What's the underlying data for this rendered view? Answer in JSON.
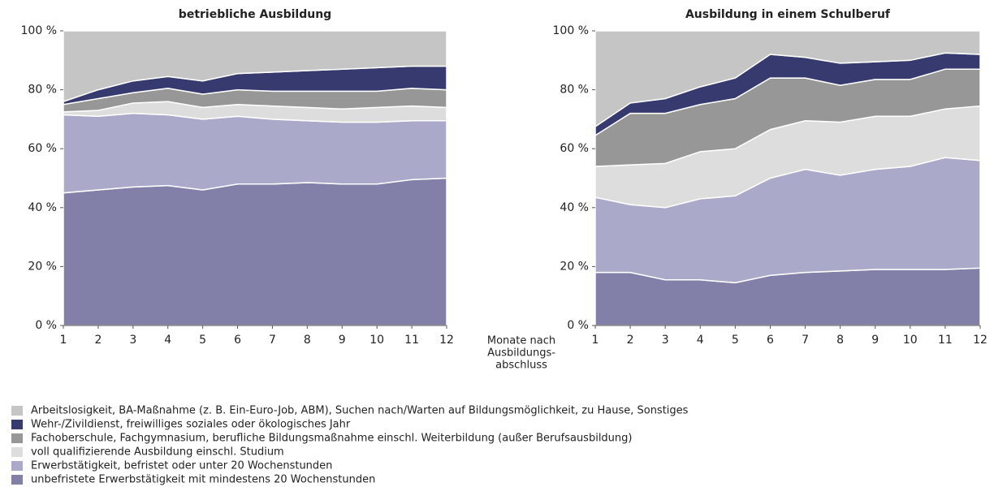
{
  "chart_data": [
    {
      "type": "area",
      "stacked": true,
      "title": "betriebliche Ausbildung",
      "x": [
        1,
        2,
        3,
        4,
        5,
        6,
        7,
        8,
        9,
        10,
        11,
        12
      ],
      "xlim": [
        1,
        12
      ],
      "xticks": [
        1,
        2,
        3,
        4,
        5,
        6,
        7,
        8,
        9,
        10,
        11,
        12
      ],
      "ylim": [
        0,
        100
      ],
      "yticks": [
        {
          "value": 0,
          "label": "0 %"
        },
        {
          "value": 20,
          "label": "20 %"
        },
        {
          "value": 40,
          "label": "40 %"
        },
        {
          "value": 60,
          "label": "60 %"
        },
        {
          "value": 80,
          "label": "80 %"
        },
        {
          "value": 100,
          "label": "100 %"
        }
      ],
      "series": [
        {
          "name": "unbefristete Erwerbstätigkeit mit mindestens 20 Wochenstunden",
          "color": "#8280a8",
          "values": [
            45,
            46,
            47,
            47.5,
            46,
            48,
            48,
            48.5,
            48,
            48,
            49.5,
            50
          ]
        },
        {
          "name": "Erwerbstätigkeit, befristet oder unter 20 Wochenstunden",
          "color": "#aba9c9",
          "values": [
            26.5,
            25,
            25,
            24,
            24,
            23,
            22,
            21,
            21,
            21,
            20,
            19.5
          ]
        },
        {
          "name": "voll qualifizierende Ausbildung einschl. Studium",
          "color": "#dddddd",
          "values": [
            1,
            2,
            3.5,
            4.5,
            4,
            4,
            4.5,
            4.5,
            4.5,
            5,
            5,
            4.5
          ]
        },
        {
          "name": "Fachoberschule, Fachgymnasium, berufliche Bildungsmaßnahme einschl. Weiterbildung (außer Berufsausbildung)",
          "color": "#979797",
          "values": [
            2.5,
            4,
            3.5,
            4.5,
            4.5,
            5,
            5,
            5.5,
            6,
            5.5,
            6,
            6
          ]
        },
        {
          "name": "Wehr-/Zivildienst, freiwilliges soziales oder ökologisches Jahr",
          "color": "#373a6e",
          "values": [
            1,
            3,
            4,
            4,
            4.5,
            5.5,
            6.5,
            7,
            7.5,
            8,
            7.5,
            8
          ]
        },
        {
          "name": "Arbeitslosigkeit, BA-Maßnahme (z. B. Ein-Euro-Job, ABM), Suchen nach/Warten auf Bildungsmöglichkeit, zu Hause, Sonstiges",
          "color": "#c5c5c5",
          "values": [
            24,
            20,
            17,
            15.5,
            17,
            14.5,
            14,
            13.5,
            13,
            12.5,
            12,
            12
          ]
        }
      ]
    },
    {
      "type": "area",
      "stacked": true,
      "title": "Ausbildung in einem Schulberuf",
      "x": [
        1,
        2,
        3,
        4,
        5,
        6,
        7,
        8,
        9,
        10,
        11,
        12
      ],
      "xlim": [
        1,
        12
      ],
      "xticks": [
        1,
        2,
        3,
        4,
        5,
        6,
        7,
        8,
        9,
        10,
        11,
        12
      ],
      "ylim": [
        0,
        100
      ],
      "yticks": [
        {
          "value": 0,
          "label": "0 %"
        },
        {
          "value": 20,
          "label": "20 %"
        },
        {
          "value": 40,
          "label": "40 %"
        },
        {
          "value": 60,
          "label": "60 %"
        },
        {
          "value": 80,
          "label": "80 %"
        },
        {
          "value": 100,
          "label": "100 %"
        }
      ],
      "series": [
        {
          "values": [
            18,
            18,
            15.5,
            15.5,
            14.5,
            17,
            18,
            18.5,
            19,
            19,
            19,
            19.5
          ]
        },
        {
          "values": [
            25.5,
            23,
            24.5,
            27.5,
            29.5,
            33,
            35,
            32.5,
            34,
            35,
            38,
            36.5
          ]
        },
        {
          "values": [
            10.5,
            13.5,
            15,
            16,
            16,
            16.5,
            16.5,
            18,
            18,
            17,
            16.5,
            18.5
          ]
        },
        {
          "values": [
            10.5,
            17.5,
            17,
            16,
            17,
            17.5,
            14.5,
            12.5,
            12.5,
            12.5,
            13.5,
            12.5
          ]
        },
        {
          "values": [
            3,
            3.5,
            5,
            6,
            7,
            8,
            7,
            7.5,
            6,
            6.5,
            5.5,
            5
          ]
        },
        {
          "values": [
            32.5,
            24.5,
            23,
            19,
            16,
            8,
            9,
            11,
            10.5,
            10,
            7.5,
            8
          ]
        }
      ]
    }
  ],
  "xlabel": [
    "Monate nach",
    "Ausbildungs-",
    "abschluss"
  ]
}
